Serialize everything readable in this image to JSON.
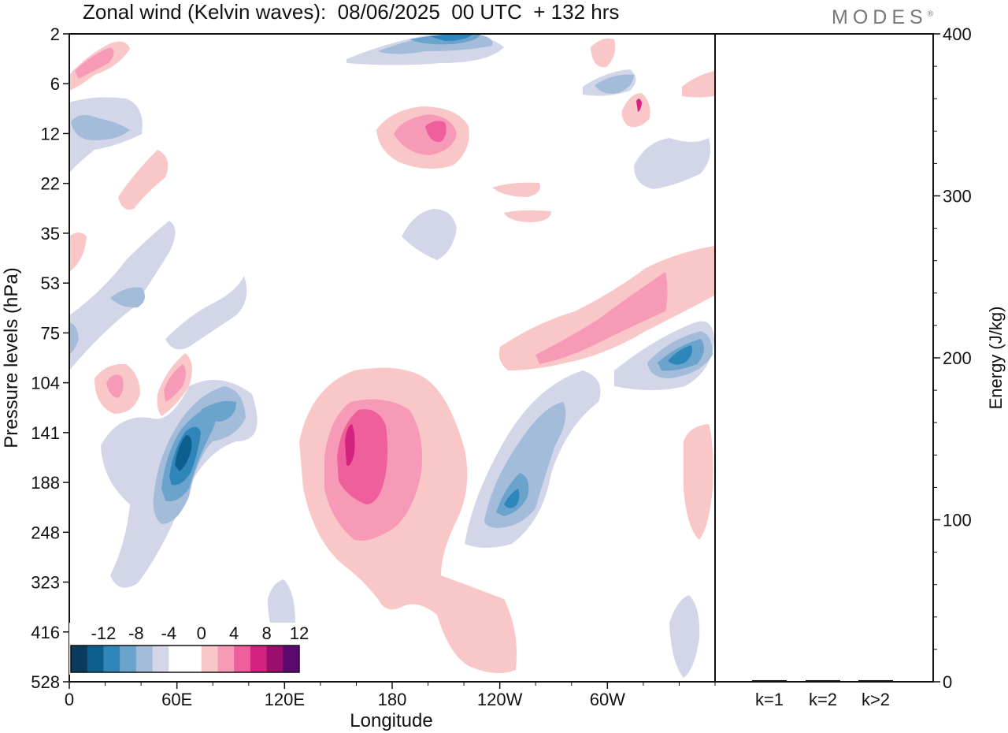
{
  "title": "Zonal wind (Kelvin waves):  08/06/2025  00 UTC  + 132 hrs",
  "brand": "MODES",
  "brand_mark": "®",
  "chart_data": [
    {
      "type": "heatmap",
      "xlabel": "Longitude",
      "ylabel": "Pressure levels (hPa)",
      "x_ticks": [
        "0",
        "60E",
        "120E",
        "180",
        "120W",
        "60W"
      ],
      "x_tick_values": [
        0,
        60,
        120,
        180,
        240,
        300
      ],
      "xlim": [
        0,
        360
      ],
      "y_ticks": [
        "2",
        "6",
        "12",
        "22",
        "35",
        "53",
        "75",
        "104",
        "141",
        "188",
        "248",
        "323",
        "416",
        "528"
      ],
      "y_scale": "pressure levels (top to bottom)",
      "colorbar": {
        "labels": [
          "-12",
          "-8",
          "-4",
          "0",
          "4",
          "8",
          "12"
        ],
        "colors": [
          "#0a3a5c",
          "#0d5f8e",
          "#2f86bb",
          "#6aa3cc",
          "#a3bcd9",
          "#d3d6e8",
          "#ffffff",
          "#ffffff",
          "#f9c7c7",
          "#f79ab8",
          "#ef5f9c",
          "#d4237f",
          "#9b0e6e",
          "#5a0a6e"
        ]
      },
      "features": [
        {
          "sign": "negative",
          "center_lon": 50,
          "center_p": 141,
          "peak": -12
        },
        {
          "sign": "positive",
          "center_lon": 130,
          "center_p": 141,
          "peak": 12
        },
        {
          "sign": "negative",
          "center_lon": 215,
          "center_p": 188,
          "peak": -8
        },
        {
          "sign": "positive",
          "center_lon": 280,
          "center_p": 75,
          "peak": 8
        },
        {
          "sign": "negative",
          "center_lon": 355,
          "center_p": 104,
          "peak": -8
        },
        {
          "sign": "positive",
          "center_lon": 180,
          "center_p": 12,
          "peak": 8
        },
        {
          "sign": "negative",
          "center_lon": 190,
          "center_p": 2,
          "peak": -12
        },
        {
          "sign": "positive",
          "center_lon": 20,
          "center_p": 104,
          "peak": 4
        },
        {
          "sign": "negative",
          "center_lon": 20,
          "center_p": 12,
          "peak": -4
        }
      ]
    },
    {
      "type": "bar",
      "ylabel": "Energy (J/kg)",
      "categories": [
        "k=1",
        "k=2",
        "k>2"
      ],
      "values": [
        0.5,
        0.5,
        0.5
      ],
      "ylim": [
        0,
        400
      ],
      "y_ticks": [
        "0",
        "100",
        "200",
        "300",
        "400"
      ],
      "y_tick_values": [
        0,
        100,
        200,
        300,
        400
      ]
    }
  ]
}
